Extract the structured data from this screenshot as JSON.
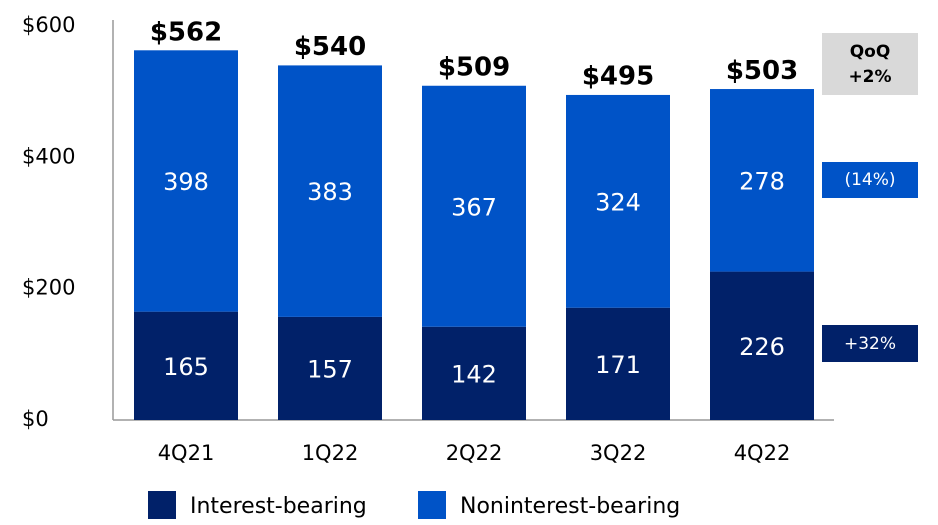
{
  "chart_data": {
    "type": "stacked_bar",
    "categories": [
      "4Q21",
      "1Q22",
      "2Q22",
      "3Q22",
      "4Q22"
    ],
    "series": [
      {
        "name": "Interest-bearing",
        "color": "#012169",
        "values": [
          165,
          157,
          142,
          171,
          226
        ]
      },
      {
        "name": "Noninterest-bearing",
        "color": "#0053c7",
        "values": [
          398,
          383,
          367,
          324,
          278
        ]
      }
    ],
    "totals": [
      562,
      540,
      509,
      495,
      503
    ],
    "value_labels": [
      "$562",
      "$540",
      "$509",
      "$495",
      "$503"
    ],
    "ylim": [
      0,
      600
    ],
    "yticks": [
      {
        "value": 0,
        "label": "$0"
      },
      {
        "value": 200,
        "label": "$200"
      },
      {
        "value": 400,
        "label": "$400"
      },
      {
        "value": 600,
        "label": "$600"
      }
    ],
    "legend": "bottom",
    "annotations": {
      "header": "QoQ",
      "total_change": "+2%",
      "noninterest_change": "(14%)",
      "interest_change": "+32%"
    }
  }
}
